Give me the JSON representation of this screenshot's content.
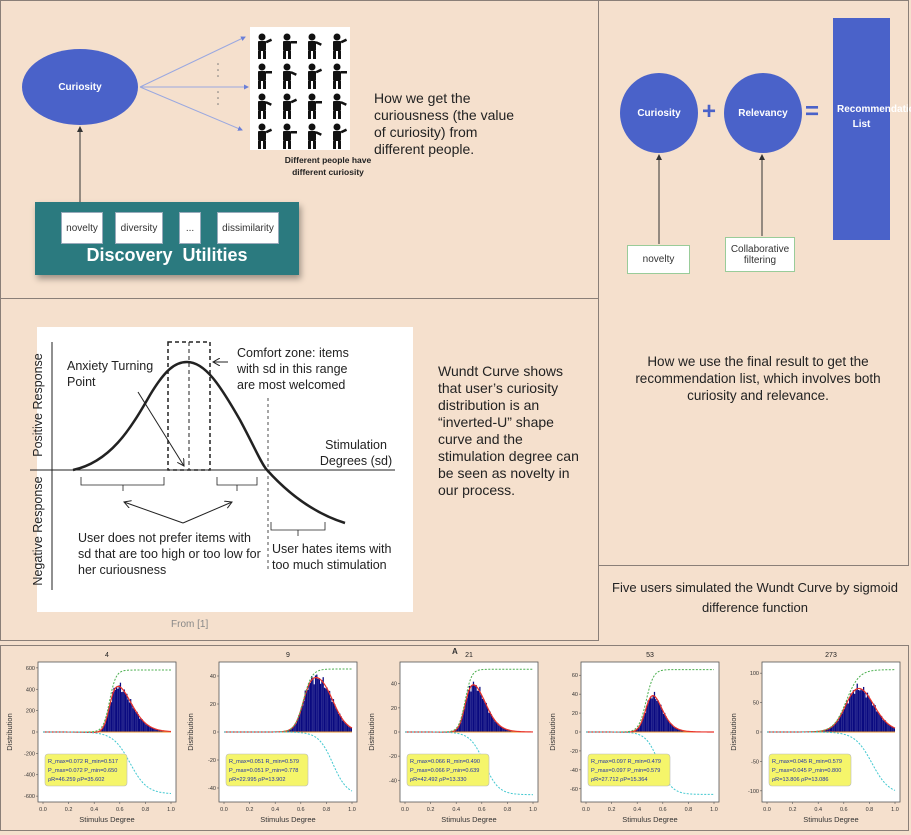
{
  "discovery": {
    "curiosity_label": "Curiosity",
    "people_caption": "Different people have different curiosity",
    "description": "How we get the curiousness (the value of curiosity) from different people.",
    "utilities_title": "Discovery  Utilities",
    "utilities": [
      "novelty",
      "diversity",
      "...",
      "dissimilarity"
    ]
  },
  "recommendation": {
    "curiosity_label": "Curiosity",
    "plus": "+",
    "relevancy_label": "Relevancy",
    "equals": "=",
    "result_label": "Recommendation List",
    "novelty_label": "novelty",
    "cf_label": "Collaborative filtering",
    "description": "How we use the final result to get the recommendation list, which involves both curiosity and relevance."
  },
  "wundt": {
    "y_positive": "Positive Response",
    "y_negative": "Negative Response",
    "anxiety": "Anxiety Turning Point",
    "comfort": "Comfort zone: items with sd in this range are most welcomed",
    "x_axis": "Stimulation Degrees (sd)",
    "not_prefer": "User does not prefer items with sd that are too high or too low for her curiousness",
    "hates": "User hates items with too much stimulation",
    "source": "From [1]",
    "description": "Wundt Curve shows that user’s curiosity distribution is an “inverted-U” shape curve and the stimulation degree can be seen as novelty in our process."
  },
  "simulation": {
    "caption": "Five users simulated the Wundt Curve by sigmoid difference function",
    "marker": "A"
  },
  "colors": {
    "background": "#f5e0cd",
    "node_blue": "#4a62c9",
    "utilities_teal": "#2b7a7f",
    "bars": "#0a0a80",
    "fit": "#e8332a",
    "reward_sigmoid": "#4caf50",
    "punish_sigmoid": "#40c8d0",
    "stats_box": "#f5f56a"
  },
  "chart_data": [
    {
      "type": "bar",
      "title": "4",
      "xlabel": "Stimulus Degree",
      "ylabel": "Distribution",
      "xlim": [
        0,
        1
      ],
      "xticks": [
        "0.0",
        "0.2",
        "0.4",
        "0.6",
        "0.8",
        "1.0"
      ],
      "ylim": [
        -655,
        655
      ],
      "yticks": [
        600,
        400,
        200,
        0,
        -200,
        -400,
        -600
      ],
      "peak": 420,
      "peak_x": 0.58,
      "sigmoid_fit": {
        "amplitude": 580,
        "reward_center": 0.52,
        "reward_slope": 40,
        "punish_center": 0.68,
        "punish_slope": 15
      },
      "stats": [
        "R_max=0.072  R_min=0.517",
        "P_max=0.072  P_min=0.650",
        "ρR=46.259  ρP=35.602"
      ]
    },
    {
      "type": "bar",
      "title": "9",
      "xlabel": "Stimulus Degree",
      "ylabel": "Distribution",
      "xlim": [
        0,
        1
      ],
      "xticks": [
        "0.0",
        "0.2",
        "0.4",
        "0.6",
        "0.8",
        "1.0"
      ],
      "ylim": [
        -50,
        50
      ],
      "yticks": [
        40,
        20,
        0,
        -20,
        -40
      ],
      "peak": 33,
      "peak_x": 0.68,
      "sigmoid_fit": {
        "amplitude": 45,
        "reward_center": 0.62,
        "reward_slope": 30,
        "punish_center": 0.85,
        "punish_slope": 18
      },
      "stats": [
        "R_max=0.051  R_min=0.579",
        "P_max=0.051  P_min=0.778",
        "ρR=22.995  ρP=13.902"
      ]
    },
    {
      "type": "bar",
      "title": "21",
      "xlabel": "Stimulus Degree",
      "ylabel": "Distribution",
      "xlim": [
        0,
        1
      ],
      "xticks": [
        "0.0",
        "0.2",
        "0.4",
        "0.6",
        "0.8",
        "1.0"
      ],
      "ylim": [
        -58,
        58
      ],
      "yticks": [
        40,
        20,
        0,
        -20,
        -40
      ],
      "peak": 37,
      "peak_x": 0.56,
      "sigmoid_fit": {
        "amplitude": 52,
        "reward_center": 0.47,
        "reward_slope": 40,
        "punish_center": 0.62,
        "punish_slope": 18
      },
      "stats": [
        "R_max=0.066  R_min=0.490",
        "P_max=0.066  P_min=0.639",
        "ρR=42.492  ρP=13.330"
      ]
    },
    {
      "type": "bar",
      "title": "53",
      "xlabel": "Stimulus Degree",
      "ylabel": "Distribution",
      "xlim": [
        0,
        1
      ],
      "xticks": [
        "0.0",
        "0.2",
        "0.4",
        "0.6",
        "0.8",
        "1.0"
      ],
      "ylim": [
        -74,
        74
      ],
      "yticks": [
        60,
        40,
        20,
        0,
        -20,
        -40,
        -60
      ],
      "peak": 33,
      "peak_x": 0.55,
      "sigmoid_fit": {
        "amplitude": 66,
        "reward_center": 0.47,
        "reward_slope": 35,
        "punish_center": 0.57,
        "punish_slope": 20
      },
      "stats": [
        "R_max=0.097  R_min=0.479",
        "P_max=0.097  P_min=0.579",
        "ρR=27.712  ρP=15.364"
      ]
    },
    {
      "type": "bar",
      "title": "273",
      "xlabel": "Stimulus Degree",
      "ylabel": "Distribution",
      "xlim": [
        0,
        1
      ],
      "xticks": [
        "0.0",
        "0.2",
        "0.4",
        "0.6",
        "0.8",
        "1.0"
      ],
      "ylim": [
        -119,
        119
      ],
      "yticks": [
        100,
        50,
        0,
        -50,
        -100
      ],
      "peak": 68,
      "peak_x": 0.7,
      "sigmoid_fit": {
        "amplitude": 106,
        "reward_center": 0.62,
        "reward_slope": 20,
        "punish_center": 0.82,
        "punish_slope": 15
      },
      "stats": [
        "R_max=0.045  R_min=0.579",
        "P_max=0.045  P_min=0.800",
        "ρR=13.806  ρP=13.086"
      ]
    }
  ]
}
